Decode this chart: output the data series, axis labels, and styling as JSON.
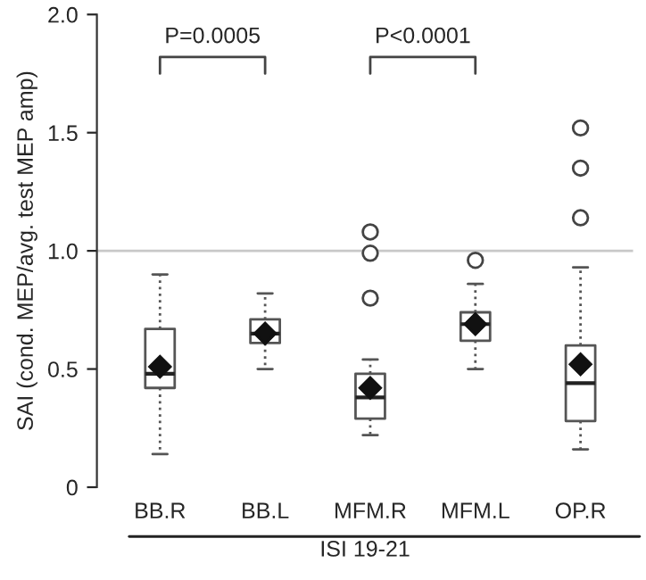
{
  "chart_data": {
    "type": "box",
    "categories": [
      "BB.R",
      "BB.L",
      "MFM.R",
      "MFM.L",
      "OP.R"
    ],
    "ylabel": "SAI (cond. MEP/avg. test MEP amp)",
    "xlabel": "ISI 19-21",
    "ylim": [
      0,
      2.0
    ],
    "yticks": [
      0,
      0.5,
      {
        "value": 1.0,
        "label": "1.0"
      },
      1.5,
      {
        "value": 2.0,
        "label": "2.0"
      }
    ],
    "boxes": [
      {
        "low": 0.14,
        "q1": 0.42,
        "median": 0.48,
        "q3": 0.67,
        "high": 0.9,
        "mean": 0.51
      },
      {
        "low": 0.5,
        "q1": 0.61,
        "median": 0.65,
        "q3": 0.71,
        "high": 0.82,
        "mean": 0.65
      },
      {
        "low": 0.22,
        "q1": 0.29,
        "median": 0.38,
        "q3": 0.48,
        "high": 0.54,
        "mean": 0.42,
        "outliers": [
          0.8,
          0.99,
          1.08
        ]
      },
      {
        "low": 0.5,
        "q1": 0.62,
        "median": 0.69,
        "q3": 0.74,
        "high": 0.86,
        "mean": 0.69,
        "outliers": [
          0.96
        ]
      },
      {
        "low": 0.16,
        "q1": 0.28,
        "median": 0.44,
        "q3": 0.6,
        "high": 0.93,
        "mean": 0.52,
        "outliers": [
          1.14,
          1.35,
          1.52
        ]
      }
    ],
    "ref_lines": [
      {
        "axis": "y",
        "value": 1.0,
        "color": "#c8c8c8"
      }
    ],
    "annotations": [
      "P=0.0005",
      "P<0.0001"
    ],
    "grid": false,
    "legend": false
  }
}
